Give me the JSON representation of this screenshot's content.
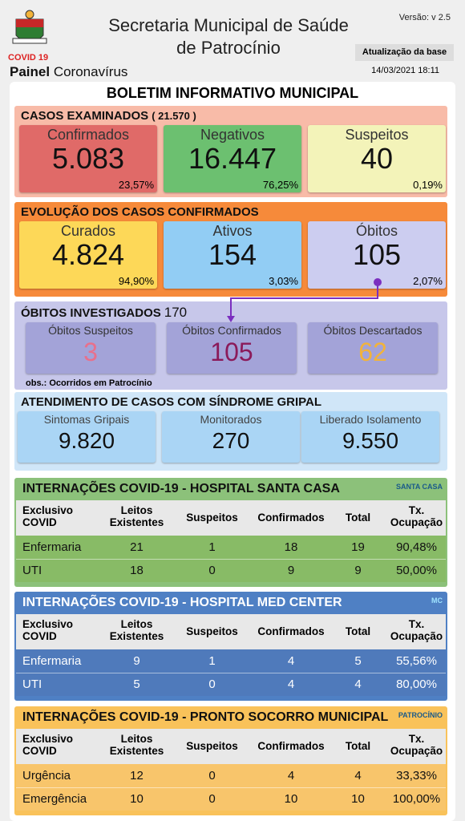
{
  "header": {
    "logo_text": "COVID 19",
    "panel_bold": "Painel",
    "panel_rest": "Coronavírus",
    "title": [
      "Secretaria Municipal de Saúde",
      "de Patrocínio"
    ],
    "version": "Versão: v 2.5",
    "update_label": "Atualização da base",
    "update_date": "14/03/2021 18:11"
  },
  "bulletin_title": "BOLETIM INFORMATIVO MUNICIPAL",
  "examined": {
    "title": "CASOS EXAMINADOS",
    "total": "( 21.570 )",
    "cards": [
      {
        "label": "Confirmados",
        "value": "5.083",
        "percent": "23,57%"
      },
      {
        "label": "Negativos",
        "value": "16.447",
        "percent": "76,25%"
      },
      {
        "label": "Suspeitos",
        "value": "40",
        "percent": "0,19%"
      }
    ]
  },
  "evolution": {
    "title": "EVOLUÇÃO DOS CASOS CONFIRMADOS",
    "cards": [
      {
        "label": "Curados",
        "value": "4.824",
        "percent": "94,90%"
      },
      {
        "label": "Ativos",
        "value": "154",
        "percent": "3,03%"
      },
      {
        "label": "Óbitos",
        "value": "105",
        "percent": "2,07%"
      }
    ]
  },
  "deaths_investigated": {
    "title": "ÓBITOS INVESTIGADOS",
    "total": "170",
    "cards": [
      {
        "label": "Óbitos Suspeitos",
        "value": "3"
      },
      {
        "label": "Óbitos Confirmados",
        "value": "105"
      },
      {
        "label": "Óbitos Descartados",
        "value": "62"
      }
    ],
    "note": "obs.: Ocorridos em Patrocínio"
  },
  "flu_syndrome": {
    "title": "ATENDIMENTO DE CASOS COM SÍNDROME GRIPAL",
    "cards": [
      {
        "label": "Sintomas Gripais",
        "value": "9.820"
      },
      {
        "label": "Monitorados",
        "value": "270"
      },
      {
        "label": "Liberado Isolamento",
        "value": "9.550"
      }
    ]
  },
  "hospitals": [
    {
      "title": "INTERNAÇÕES COVID-19 - HOSPITAL SANTA CASA",
      "logo": "SANTA CASA",
      "columns": [
        "Exclusivo\nCOVID",
        "Leitos\nExistentes",
        "Suspeitos",
        "Confirmados",
        "Total",
        "Tx.\nOcupação"
      ],
      "rows": [
        [
          "Enfermaria",
          21,
          1,
          18,
          19,
          "90,48%"
        ],
        [
          "UTI",
          18,
          0,
          9,
          9,
          "50,00%"
        ]
      ]
    },
    {
      "title": "INTERNAÇÕES COVID-19 - HOSPITAL MED CENTER",
      "logo": "MC",
      "columns": [
        "Exclusivo\nCOVID",
        "Leitos\nExistentes",
        "Suspeitos",
        "Confirmados",
        "Total",
        "Tx.\nOcupação"
      ],
      "rows": [
        [
          "Enfermaria",
          9,
          1,
          4,
          5,
          "55,56%"
        ],
        [
          "UTI",
          5,
          0,
          4,
          4,
          "80,00%"
        ]
      ]
    },
    {
      "title": "INTERNAÇÕES COVID-19 - PRONTO SOCORRO MUNICIPAL",
      "logo": "PATROCÍNIO",
      "columns": [
        "Exclusivo\nCOVID",
        "Leitos\nExistentes",
        "Suspeitos",
        "Confirmados",
        "Total",
        "Tx.\nOcupação"
      ],
      "rows": [
        [
          "Urgência",
          12,
          0,
          4,
          4,
          "33,33%"
        ],
        [
          "Emergência",
          10,
          0,
          10,
          10,
          "100,00%"
        ]
      ]
    }
  ]
}
